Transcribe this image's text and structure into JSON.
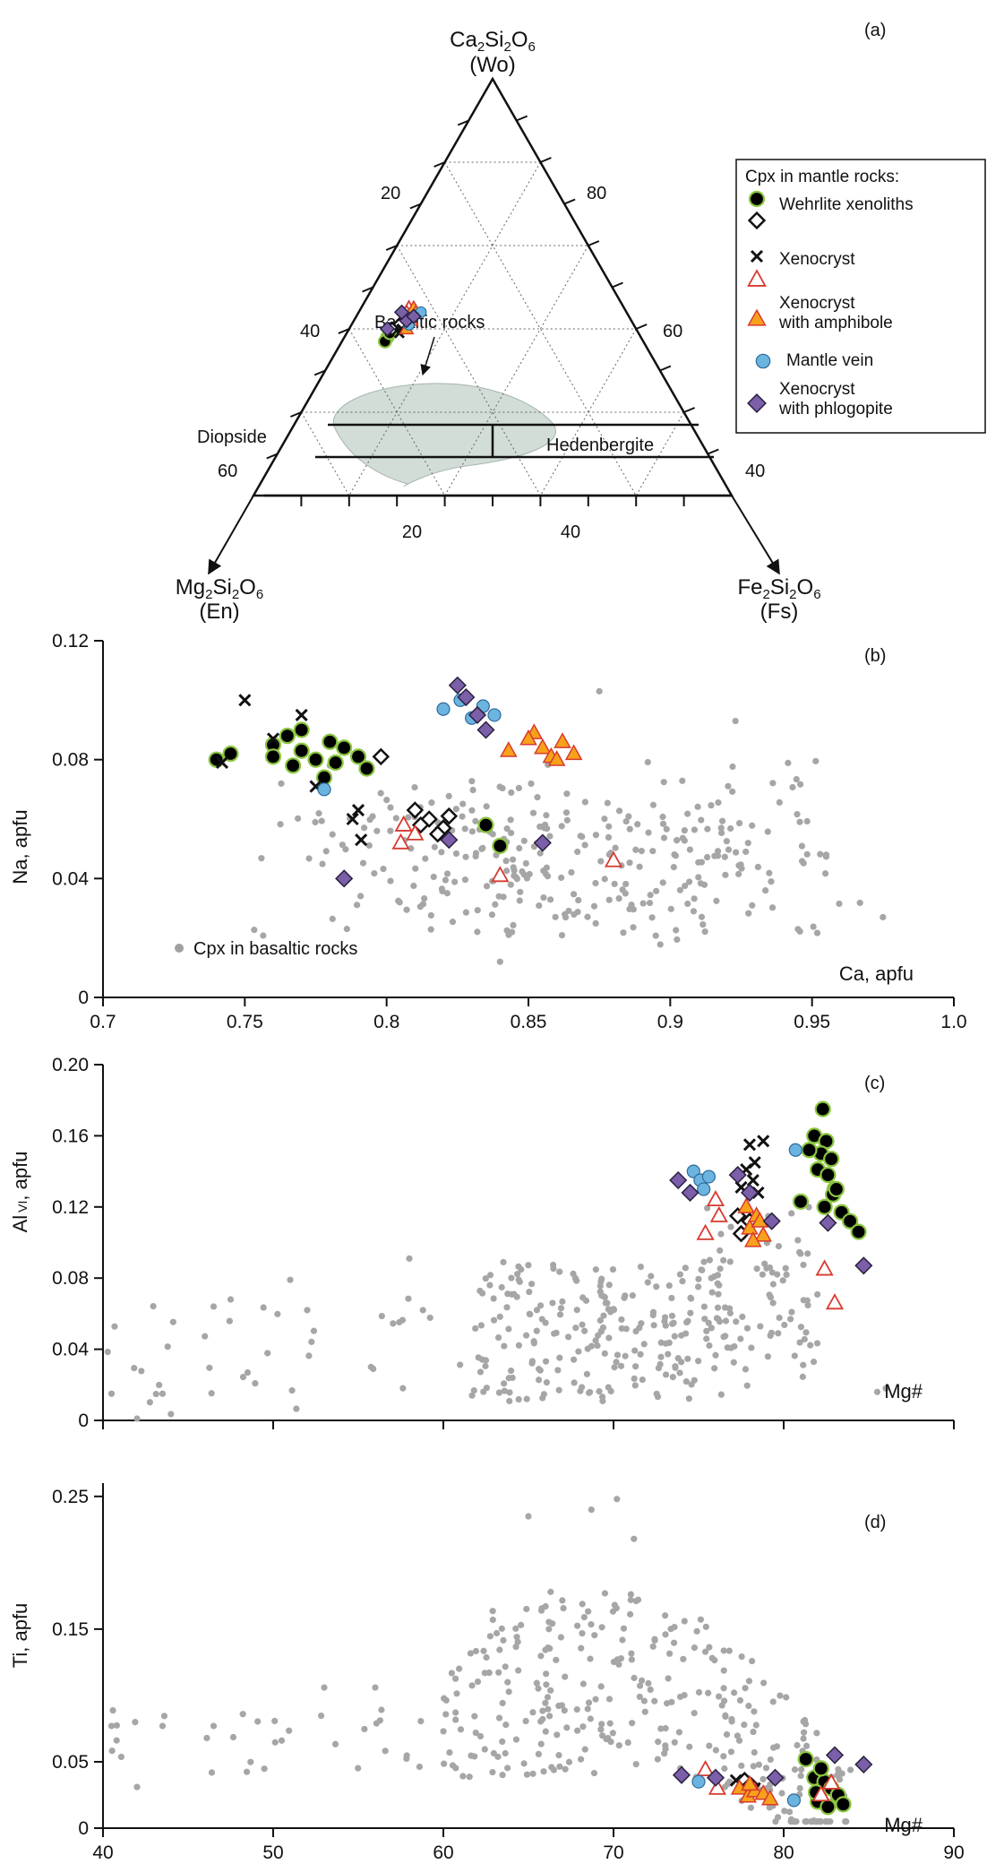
{
  "chart_data": [
    {
      "panel_label": "(a)",
      "type": "ternary",
      "vertices": {
        "top": {
          "formula_main": "Ca",
          "formula_sub": [
            "2",
            "2",
            "6"
          ],
          "formula_parts": [
            "Ca",
            "Si",
            "O"
          ],
          "name": "(Wo)"
        },
        "left": {
          "formula_parts": [
            "Mg",
            "Si",
            "O"
          ],
          "formula_sub": [
            "2",
            "2",
            "6"
          ],
          "name": "(En)"
        },
        "right": {
          "formula_parts": [
            "Fe",
            "Si",
            "O"
          ],
          "formula_sub": [
            "2",
            "2",
            "6"
          ],
          "name": "(Fs)"
        }
      },
      "left_edge_ticks": [
        "20",
        "40",
        "60"
      ],
      "right_edge_ticks": [
        "80",
        "60",
        "40"
      ],
      "bottom_ticks": [
        "20",
        "40"
      ],
      "field_labels": [
        "Diopside",
        "Hedenbergite"
      ],
      "annotation": "Basaltic rocks",
      "points": [
        {
          "s": "wehrlite_fill",
          "wo": 38,
          "en": 53
        },
        {
          "s": "wehrlite_fill",
          "wo": 37,
          "en": 54
        },
        {
          "s": "wehrlite_fill",
          "wo": 39,
          "en": 52
        },
        {
          "s": "wehrlite_open",
          "wo": 41,
          "en": 49
        },
        {
          "s": "wehrlite_open",
          "wo": 40,
          "en": 51
        },
        {
          "s": "xenocryst_x",
          "wo": 39,
          "en": 50
        },
        {
          "s": "xenocryst_x",
          "wo": 40,
          "en": 49
        },
        {
          "s": "xenocryst_open",
          "wo": 45,
          "en": 45
        },
        {
          "s": "xenocryst_open",
          "wo": 44,
          "en": 46
        },
        {
          "s": "amph",
          "wo": 45,
          "en": 44
        },
        {
          "s": "amph",
          "wo": 42,
          "en": 46
        },
        {
          "s": "amph",
          "wo": 44,
          "en": 44
        },
        {
          "s": "amph",
          "wo": 40,
          "en": 48
        },
        {
          "s": "vein",
          "wo": 44,
          "en": 43
        },
        {
          "s": "vein",
          "wo": 43,
          "en": 45
        },
        {
          "s": "vein",
          "wo": 41,
          "en": 47
        },
        {
          "s": "phlog",
          "wo": 40,
          "en": 52
        },
        {
          "s": "phlog",
          "wo": 42,
          "en": 47
        },
        {
          "s": "phlog",
          "wo": 44,
          "en": 47
        },
        {
          "s": "phlog",
          "wo": 43,
          "en": 45
        }
      ],
      "legend": {
        "title": "Cpx in mantle rocks:",
        "entries": [
          "Wehrlite xenoliths",
          "Xenocryst",
          "Xenocryst\nwith amphibole",
          "Mantle vein",
          "Xenocryst\nwith phlogopite"
        ]
      }
    },
    {
      "panel_label": "(b)",
      "type": "scatter",
      "xlabel": "Ca, apfu",
      "ylabel": "Na, apfu",
      "xlim": [
        0.7,
        1.0
      ],
      "ylim": [
        0,
        0.12
      ],
      "xticks": [
        "0.7",
        "0.75",
        "0.8",
        "0.85",
        "0.9",
        "0.95",
        "1.0"
      ],
      "yticks": [
        "0",
        "0.04",
        "0.08",
        "0.12"
      ],
      "basalt_label": "Cpx in basaltic rocks",
      "series": [
        {
          "name": "wehrlite_fill",
          "points": [
            [
              0.74,
              0.08
            ],
            [
              0.745,
              0.082
            ],
            [
              0.76,
              0.085
            ],
            [
              0.765,
              0.088
            ],
            [
              0.77,
              0.083
            ],
            [
              0.775,
              0.08
            ],
            [
              0.78,
              0.086
            ],
            [
              0.782,
              0.079
            ],
            [
              0.785,
              0.084
            ],
            [
              0.79,
              0.081
            ],
            [
              0.793,
              0.077
            ],
            [
              0.77,
              0.09
            ],
            [
              0.767,
              0.078
            ],
            [
              0.76,
              0.081
            ],
            [
              0.778,
              0.074
            ],
            [
              0.835,
              0.058
            ],
            [
              0.84,
              0.051
            ]
          ]
        },
        {
          "name": "wehrlite_open",
          "points": [
            [
              0.798,
              0.081
            ],
            [
              0.81,
              0.063
            ],
            [
              0.815,
              0.06
            ],
            [
              0.82,
              0.057
            ],
            [
              0.822,
              0.061
            ],
            [
              0.812,
              0.058
            ],
            [
              0.818,
              0.055
            ]
          ]
        },
        {
          "name": "xenocryst_x",
          "points": [
            [
              0.75,
              0.1
            ],
            [
              0.742,
              0.079
            ],
            [
              0.77,
              0.095
            ],
            [
              0.76,
              0.087
            ],
            [
              0.775,
              0.071
            ],
            [
              0.79,
              0.063
            ],
            [
              0.791,
              0.053
            ],
            [
              0.788,
              0.06
            ]
          ]
        },
        {
          "name": "xenocryst_open",
          "points": [
            [
              0.806,
              0.058
            ],
            [
              0.81,
              0.055
            ],
            [
              0.805,
              0.052
            ],
            [
              0.84,
              0.041
            ],
            [
              0.88,
              0.046
            ]
          ]
        },
        {
          "name": "amph",
          "points": [
            [
              0.843,
              0.083
            ],
            [
              0.852,
              0.089
            ],
            [
              0.855,
              0.084
            ],
            [
              0.858,
              0.081
            ],
            [
              0.862,
              0.086
            ],
            [
              0.866,
              0.082
            ],
            [
              0.86,
              0.08
            ],
            [
              0.85,
              0.087
            ]
          ]
        },
        {
          "name": "vein",
          "points": [
            [
              0.778,
              0.07
            ],
            [
              0.82,
              0.097
            ],
            [
              0.826,
              0.1
            ],
            [
              0.83,
              0.094
            ],
            [
              0.834,
              0.098
            ],
            [
              0.838,
              0.095
            ]
          ]
        },
        {
          "name": "phlog",
          "points": [
            [
              0.785,
              0.04
            ],
            [
              0.825,
              0.105
            ],
            [
              0.828,
              0.101
            ],
            [
              0.832,
              0.095
            ],
            [
              0.835,
              0.09
            ],
            [
              0.822,
              0.053
            ],
            [
              0.855,
              0.052
            ]
          ]
        }
      ]
    },
    {
      "panel_label": "(c)",
      "type": "scatter",
      "xlabel": "Mg#",
      "ylabel_main": "Al",
      "ylabel_sub": "VI",
      "ylabel_tail": ", apfu",
      "xlim": [
        40,
        90
      ],
      "ylim": [
        0,
        0.2
      ],
      "xticks": [],
      "yticks": [
        "0",
        "0.04",
        "0.08",
        "0.12",
        "0.16",
        "0.20"
      ],
      "series": [
        {
          "name": "wehrlite_fill",
          "points": [
            [
              82.3,
              0.175
            ],
            [
              81.8,
              0.16
            ],
            [
              82.5,
              0.157
            ],
            [
              82.2,
              0.15
            ],
            [
              82.8,
              0.147
            ],
            [
              82.0,
              0.141
            ],
            [
              82.6,
              0.138
            ],
            [
              83.0,
              0.13
            ],
            [
              82.9,
              0.127
            ],
            [
              81.0,
              0.123
            ],
            [
              82.4,
              0.12
            ],
            [
              83.4,
              0.117
            ],
            [
              83.9,
              0.112
            ],
            [
              84.4,
              0.106
            ],
            [
              83.1,
              0.13
            ],
            [
              81.5,
              0.152
            ]
          ]
        },
        {
          "name": "wehrlite_open",
          "points": [
            [
              77.5,
              0.105
            ],
            [
              78.0,
              0.112
            ],
            [
              77.3,
              0.115
            ]
          ]
        },
        {
          "name": "xenocryst_x",
          "points": [
            [
              78.0,
              0.155
            ],
            [
              78.8,
              0.157
            ],
            [
              78.3,
              0.145
            ],
            [
              77.8,
              0.141
            ],
            [
              77.5,
              0.131
            ],
            [
              78.2,
              0.135
            ],
            [
              78.5,
              0.128
            ]
          ]
        },
        {
          "name": "xenocryst_open",
          "points": [
            [
              75.4,
              0.105
            ],
            [
              76.2,
              0.115
            ],
            [
              76.0,
              0.124
            ],
            [
              82.4,
              0.085
            ],
            [
              83.0,
              0.066
            ]
          ]
        },
        {
          "name": "amph",
          "points": [
            [
              77.8,
              0.12
            ],
            [
              78.4,
              0.115
            ],
            [
              78.0,
              0.108
            ],
            [
              78.8,
              0.104
            ],
            [
              78.2,
              0.101
            ],
            [
              78.6,
              0.112
            ]
          ]
        },
        {
          "name": "vein",
          "points": [
            [
              74.7,
              0.14
            ],
            [
              75.1,
              0.135
            ],
            [
              75.6,
              0.137
            ],
            [
              75.3,
              0.13
            ],
            [
              80.7,
              0.152
            ]
          ]
        },
        {
          "name": "phlog",
          "points": [
            [
              73.8,
              0.135
            ],
            [
              74.5,
              0.128
            ],
            [
              77.3,
              0.138
            ],
            [
              78.0,
              0.128
            ],
            [
              79.3,
              0.112
            ],
            [
              82.6,
              0.111
            ],
            [
              84.7,
              0.087
            ]
          ]
        }
      ]
    },
    {
      "panel_label": "(d)",
      "type": "scatter",
      "xlabel": "Mg#",
      "ylabel": "Ti, apfu",
      "xlim": [
        40,
        90
      ],
      "ylim": [
        0,
        0.26
      ],
      "xticks": [
        "40",
        "50",
        "60",
        "70",
        "80",
        "90"
      ],
      "yticks": [
        "0",
        "0.05",
        "0.15",
        "0.25"
      ],
      "series": [
        {
          "name": "wehrlite_fill",
          "points": [
            [
              81.3,
              0.052
            ],
            [
              81.8,
              0.038
            ],
            [
              82.4,
              0.035
            ],
            [
              82.8,
              0.03
            ],
            [
              83.2,
              0.025
            ],
            [
              82.0,
              0.02
            ],
            [
              82.6,
              0.016
            ],
            [
              83.5,
              0.018
            ],
            [
              82.2,
              0.045
            ],
            [
              81.9,
              0.027
            ]
          ]
        },
        {
          "name": "wehrlite_open",
          "points": [
            [
              77.7,
              0.036
            ],
            [
              78.1,
              0.032
            ]
          ]
        },
        {
          "name": "xenocryst_x",
          "points": [
            [
              77.2,
              0.036
            ],
            [
              77.6,
              0.032
            ],
            [
              78.3,
              0.03
            ]
          ]
        },
        {
          "name": "xenocryst_open",
          "points": [
            [
              75.4,
              0.044
            ],
            [
              76.1,
              0.03
            ],
            [
              82.2,
              0.025
            ],
            [
              82.8,
              0.034
            ]
          ]
        },
        {
          "name": "amph",
          "points": [
            [
              77.4,
              0.03
            ],
            [
              77.9,
              0.024
            ],
            [
              78.3,
              0.028
            ],
            [
              78.8,
              0.026
            ],
            [
              79.2,
              0.022
            ],
            [
              78.0,
              0.033
            ]
          ]
        },
        {
          "name": "vein",
          "points": [
            [
              75.0,
              0.035
            ],
            [
              80.6,
              0.021
            ]
          ]
        },
        {
          "name": "phlog",
          "points": [
            [
              74.0,
              0.04
            ],
            [
              76.0,
              0.038
            ],
            [
              79.5,
              0.038
            ],
            [
              83.0,
              0.055
            ],
            [
              84.7,
              0.048
            ]
          ]
        }
      ]
    }
  ]
}
